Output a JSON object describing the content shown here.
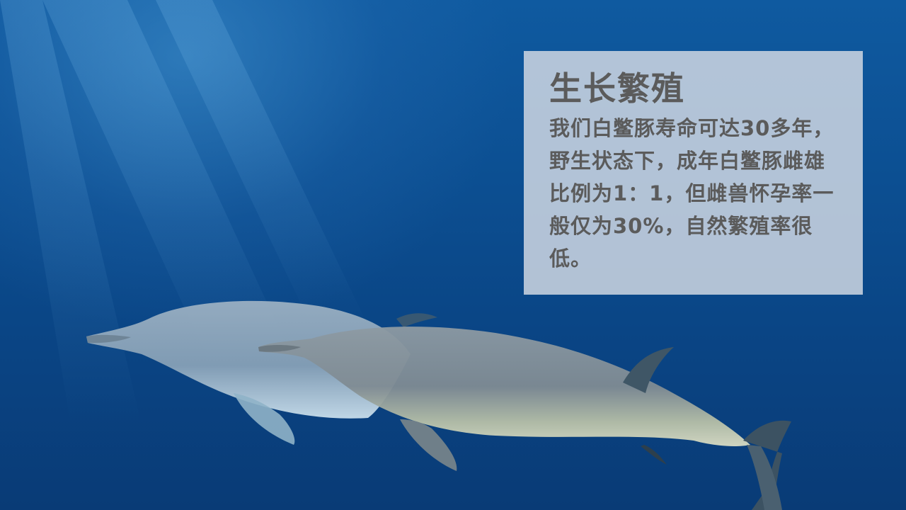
{
  "panel": {
    "title": "生长繁殖",
    "body": "我们白鳖豚寿命可达30多年，野生状态下，成年白鳖豚雌雄比例为1：1，但雌兽怀孕率一般仅为30%，自然繁殖率很低。"
  },
  "colors": {
    "ocean_top": "#0f5aa0",
    "ocean_bottom": "#093b76",
    "panel_bg": "#ced6e2",
    "text": "#5b5b5b"
  }
}
